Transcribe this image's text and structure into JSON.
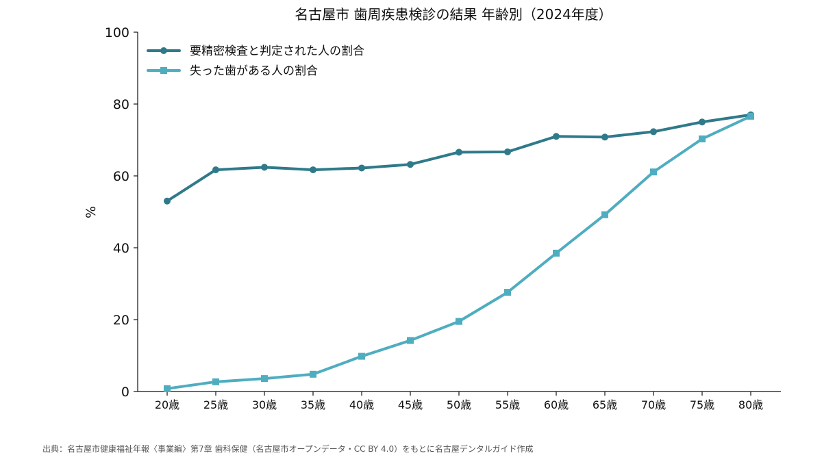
{
  "chart_data": {
    "type": "line",
    "title": "名古屋市 歯周疾患検診の結果 年齢別（2024年度）",
    "xlabel": "",
    "ylabel": "%",
    "categories": [
      "20歳",
      "25歳",
      "30歳",
      "35歳",
      "40歳",
      "45歳",
      "50歳",
      "55歳",
      "60歳",
      "65歳",
      "70歳",
      "75歳",
      "80歳"
    ],
    "ylim": [
      0,
      100
    ],
    "yticks": [
      "0",
      "20",
      "40",
      "60",
      "80",
      "100"
    ],
    "grid": false,
    "legend_position": "top-left",
    "series": [
      {
        "name": "要精密検査と判定された人の割合",
        "values": [
          53.0,
          61.7,
          62.4,
          61.7,
          62.2,
          63.2,
          66.6,
          66.7,
          71.0,
          70.8,
          72.3,
          75.0,
          77.0
        ],
        "color": "#2f7a8a",
        "marker": "circle"
      },
      {
        "name": "失った歯がある人の割合",
        "values": [
          0.8,
          2.7,
          3.6,
          4.8,
          9.8,
          14.2,
          19.5,
          27.6,
          38.5,
          49.2,
          61.1,
          70.3,
          76.6
        ],
        "color": "#4fadc0",
        "marker": "square"
      }
    ],
    "source": "出典：名古屋市健康福祉年報〈事業編〉第7章 歯科保健（名古屋市オープンデータ・CC BY 4.0）をもとに名古屋デンタルガイド作成"
  }
}
